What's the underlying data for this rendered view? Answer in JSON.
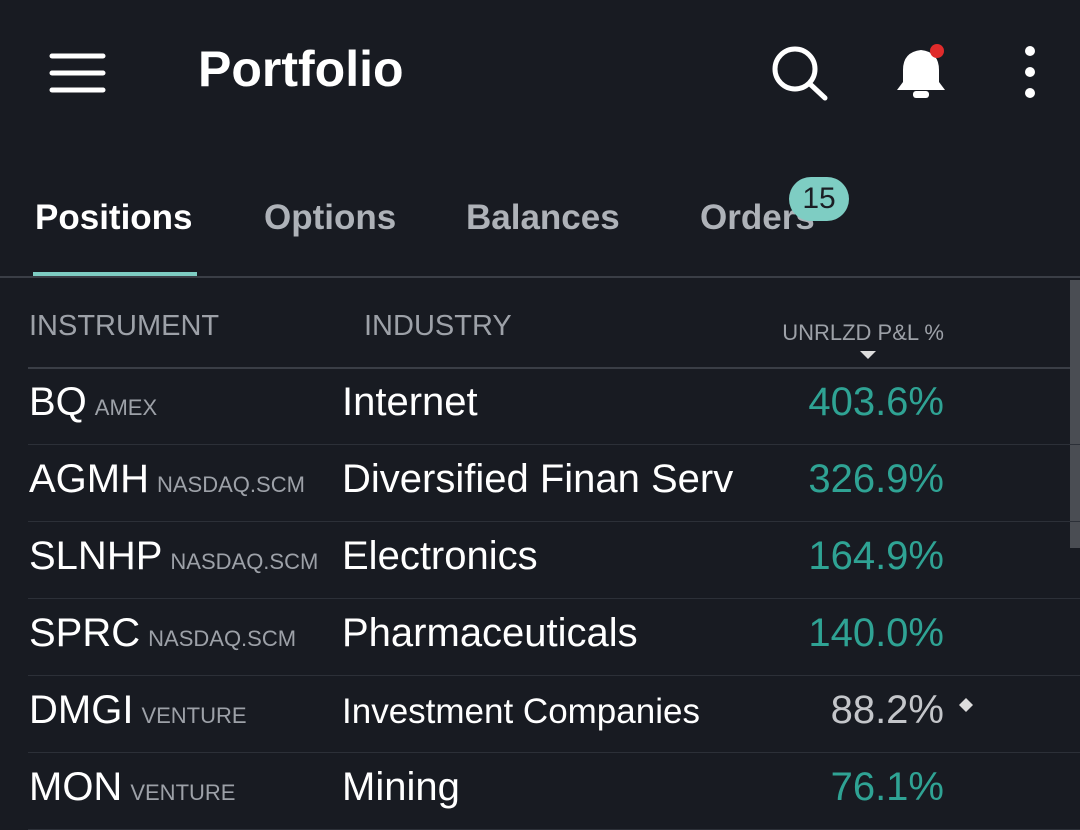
{
  "header": {
    "title": "Portfolio"
  },
  "tabs": {
    "items": [
      "Positions",
      "Options",
      "Balances",
      "Orders"
    ],
    "badge": "15"
  },
  "table": {
    "columns": [
      "INSTRUMENT",
      "INDUSTRY",
      "UNRLZD P&L %"
    ],
    "rows": [
      [
        "BQ",
        "AMEX",
        "Internet",
        "403.6%"
      ],
      [
        "AGMH",
        "NASDAQ.SCM",
        "Diversified Finan Serv",
        "326.9%"
      ],
      [
        "SLNHP",
        "NASDAQ.SCM",
        "Electronics",
        "164.9%"
      ],
      [
        "SPRC",
        "NASDAQ.SCM",
        "Pharmaceuticals",
        "140.0%"
      ],
      [
        "DMGI",
        "VENTURE",
        "Investment Companies",
        "88.2%"
      ],
      [
        "MON",
        "VENTURE",
        "Mining",
        "76.1%"
      ]
    ]
  }
}
